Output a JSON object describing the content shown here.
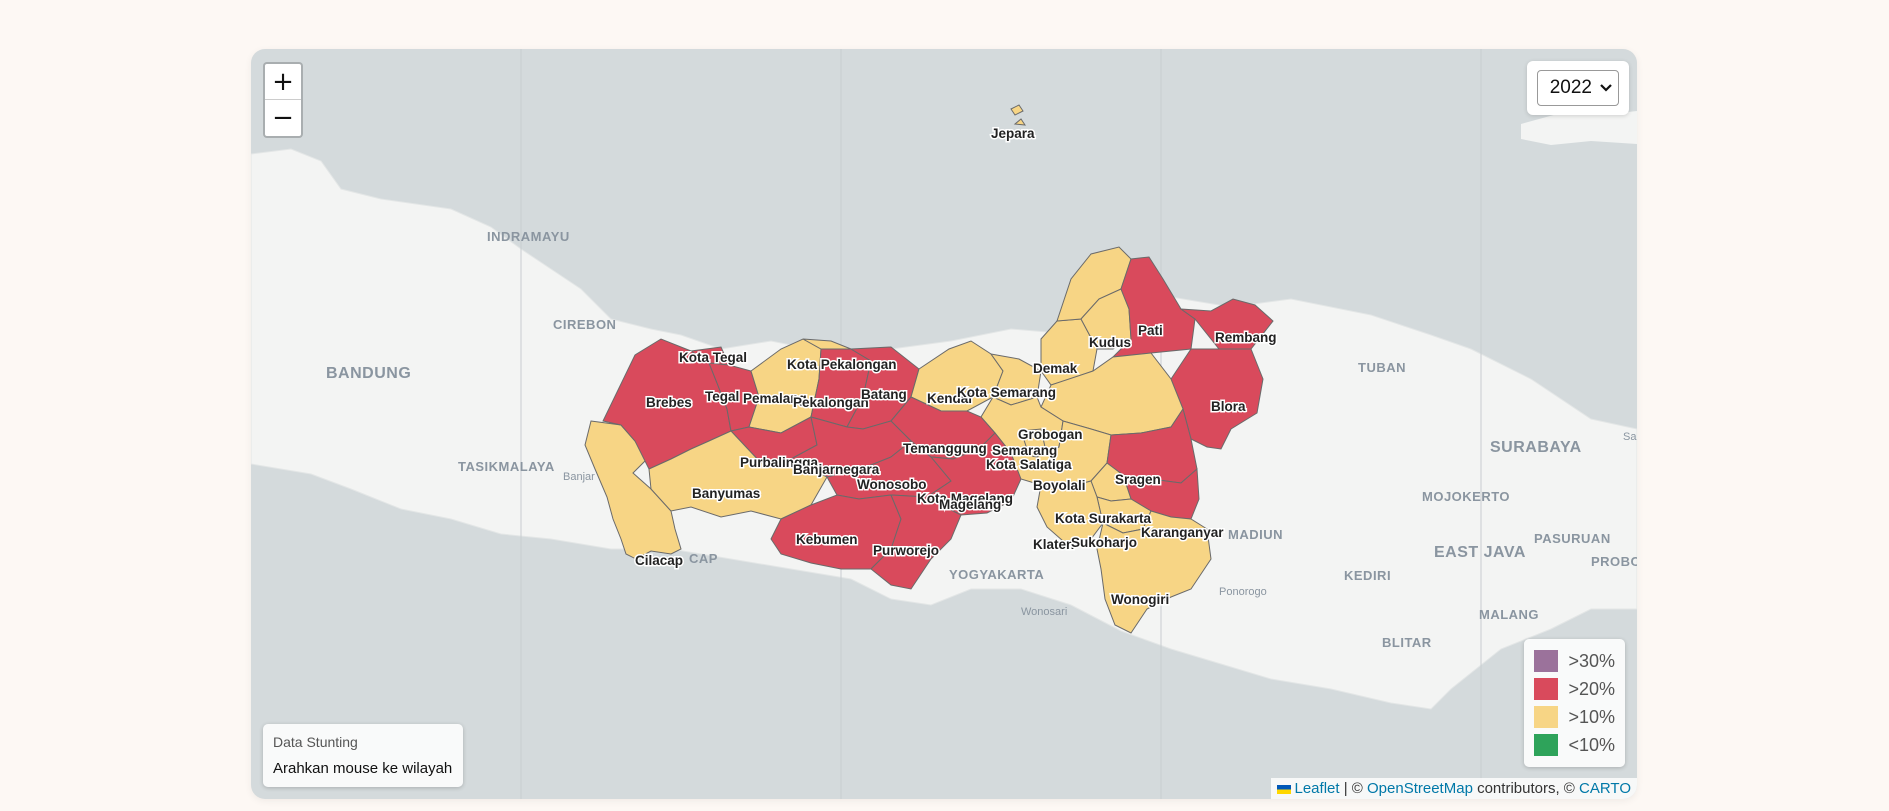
{
  "map": {
    "zoom_in": "+",
    "zoom_out": "−",
    "year_selected": "2022",
    "info": {
      "title": "Data Stunting",
      "hint": "Arahkan mouse ke wilayah"
    },
    "legend": [
      {
        "label": ">30%",
        "color": "#9b729b"
      },
      {
        "label": ">20%",
        "color": "#d94a5c"
      },
      {
        "label": ">10%",
        "color": "#f7d585"
      },
      {
        "label": "<10%",
        "color": "#2ea35a"
      }
    ],
    "attribution": {
      "leaflet": "Leaflet",
      "sep": "| ©",
      "osm": "OpenStreetMap",
      "contrib": "contributors, ©",
      "carto": "CARTO"
    },
    "base_labels": {
      "indramayu": "INDRAMAYU",
      "cirebon": "CIREBON",
      "bandung": "BANDUNG",
      "tasikmalaya": "TASIKMALAYA",
      "banjar": "Banjar",
      "cilacap": "CAP",
      "yogyakarta": "YOGYAKARTA",
      "wonosari": "Wonosari",
      "tuban": "TUBAN",
      "surabaya": "SURABAYA",
      "mojokerto": "MOJOKERTO",
      "madiun": "MADIUN",
      "pasuruan": "PASURUAN",
      "east_java": "EAST JAVA",
      "kediri": "KEDIRI",
      "ponorogo": "Ponorogo",
      "malang": "MALANG",
      "blitar": "BLITAR",
      "probo": "PROBO",
      "sa": "Sa"
    },
    "regions": {
      "jepara": "Jepara",
      "kota_tegal": "Kota Tegal",
      "kota_pekalongan": "Kota Pekalongan",
      "brebes": "Brebes",
      "tegal": "Tegal",
      "pemalang": "Pemalang",
      "pekalongan": "Pekalongan",
      "batang": "Batang",
      "kendal": "Kendal",
      "kota_semarang": "Kota Semarang",
      "demak": "Demak",
      "kudus": "Kudus",
      "pati": "Pati",
      "rembang": "Rembang",
      "blora": "Blora",
      "grobogan": "Grobogan",
      "semarang": "Semarang",
      "kota_salatiga": "Kota Salatiga",
      "temanggung": "Temanggung",
      "purbalingga": "Purbalingga",
      "banjarnegara": "Banjarnegara",
      "banyumas": "Banyumas",
      "wonosobo": "Wonosobo",
      "kota_magelang": "Kota Magelang",
      "magelang": "Magelang",
      "boyolali": "Boyolali",
      "sragen": "Sragen",
      "kota_surakarta": "Kota Surakarta",
      "karanganyar": "Karanganyar",
      "klaten": "Klaten",
      "sukoharjo": "Sukoharjo",
      "kebumen": "Kebumen",
      "purworejo": "Purworejo",
      "cilacap": "Cilacap",
      "wonogiri": "Wonogiri"
    }
  }
}
